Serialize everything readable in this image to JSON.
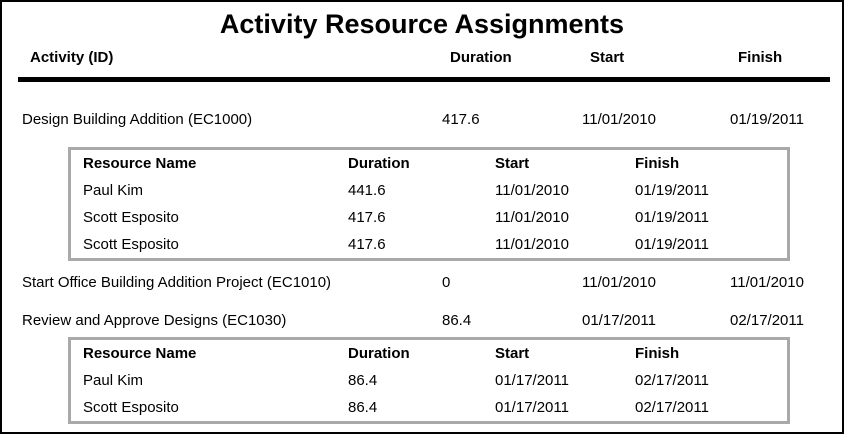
{
  "report": {
    "title": "Activity Resource Assignments",
    "columns": {
      "activity": "Activity (ID)",
      "duration": "Duration",
      "start": "Start",
      "finish": "Finish"
    },
    "resource_columns": {
      "name": "Resource Name",
      "duration": "Duration",
      "start": "Start",
      "finish": "Finish"
    },
    "activities": [
      {
        "activity": "Design Building Addition (EC1000)",
        "duration": "417.6",
        "start": "11/01/2010",
        "finish": "01/19/2011",
        "resources": [
          {
            "name": "Paul Kim",
            "duration": "441.6",
            "start": "11/01/2010",
            "finish": "01/19/2011"
          },
          {
            "name": "Scott Esposito",
            "duration": "417.6",
            "start": "11/01/2010",
            "finish": "01/19/2011"
          },
          {
            "name": "Scott Esposito",
            "duration": "417.6",
            "start": "11/01/2010",
            "finish": "01/19/2011"
          }
        ]
      },
      {
        "activity": "Start Office Building Addition Project (EC1010)",
        "duration": "0",
        "start": "11/01/2010",
        "finish": "11/01/2010",
        "resources": []
      },
      {
        "activity": "Review and Approve Designs (EC1030)",
        "duration": "86.4",
        "start": "01/17/2011",
        "finish": "02/17/2011",
        "resources": [
          {
            "name": "Paul Kim",
            "duration": "86.4",
            "start": "01/17/2011",
            "finish": "02/17/2011"
          },
          {
            "name": "Scott Esposito",
            "duration": "86.4",
            "start": "01/17/2011",
            "finish": "02/17/2011"
          }
        ]
      }
    ],
    "colors": {
      "text": "#000000",
      "rule": "#000000",
      "resource_table_border": "#a9a9a9",
      "background": "#ffffff"
    }
  }
}
